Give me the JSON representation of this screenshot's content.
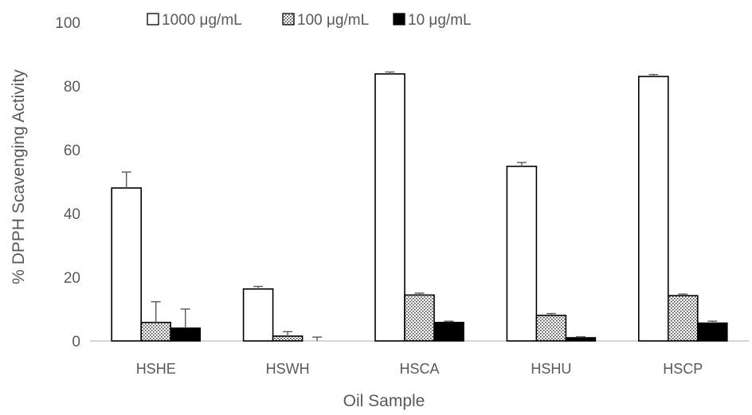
{
  "chart_data": {
    "type": "bar",
    "title": "",
    "xlabel": "Oil Sample",
    "ylabel": "% DPPH Scavenging Activity",
    "ylim": [
      0,
      100
    ],
    "yticks": [
      0,
      20,
      40,
      60,
      80,
      100
    ],
    "categories": [
      "HSHE",
      "HSWH",
      "HSCA",
      "HSHU",
      "HSCP"
    ],
    "series": [
      {
        "name": "1000 μg/mL",
        "values": [
          48,
          16.3,
          83.8,
          54.8,
          83
        ],
        "errors": [
          5,
          0.8,
          0.6,
          1.2,
          0.6
        ],
        "pattern": "white"
      },
      {
        "name": "100 μg/mL",
        "values": [
          5.8,
          1.5,
          14.4,
          8,
          14.2
        ],
        "errors": [
          6.5,
          1.4,
          0.6,
          0.6,
          0.5
        ],
        "pattern": "dotted"
      },
      {
        "name": "10 μg/mL",
        "values": [
          4,
          0,
          5.8,
          1,
          5.6
        ],
        "errors": [
          6,
          1.2,
          0.4,
          0.3,
          0.6
        ],
        "pattern": "black"
      }
    ],
    "legend_position": "top",
    "grid": false
  }
}
